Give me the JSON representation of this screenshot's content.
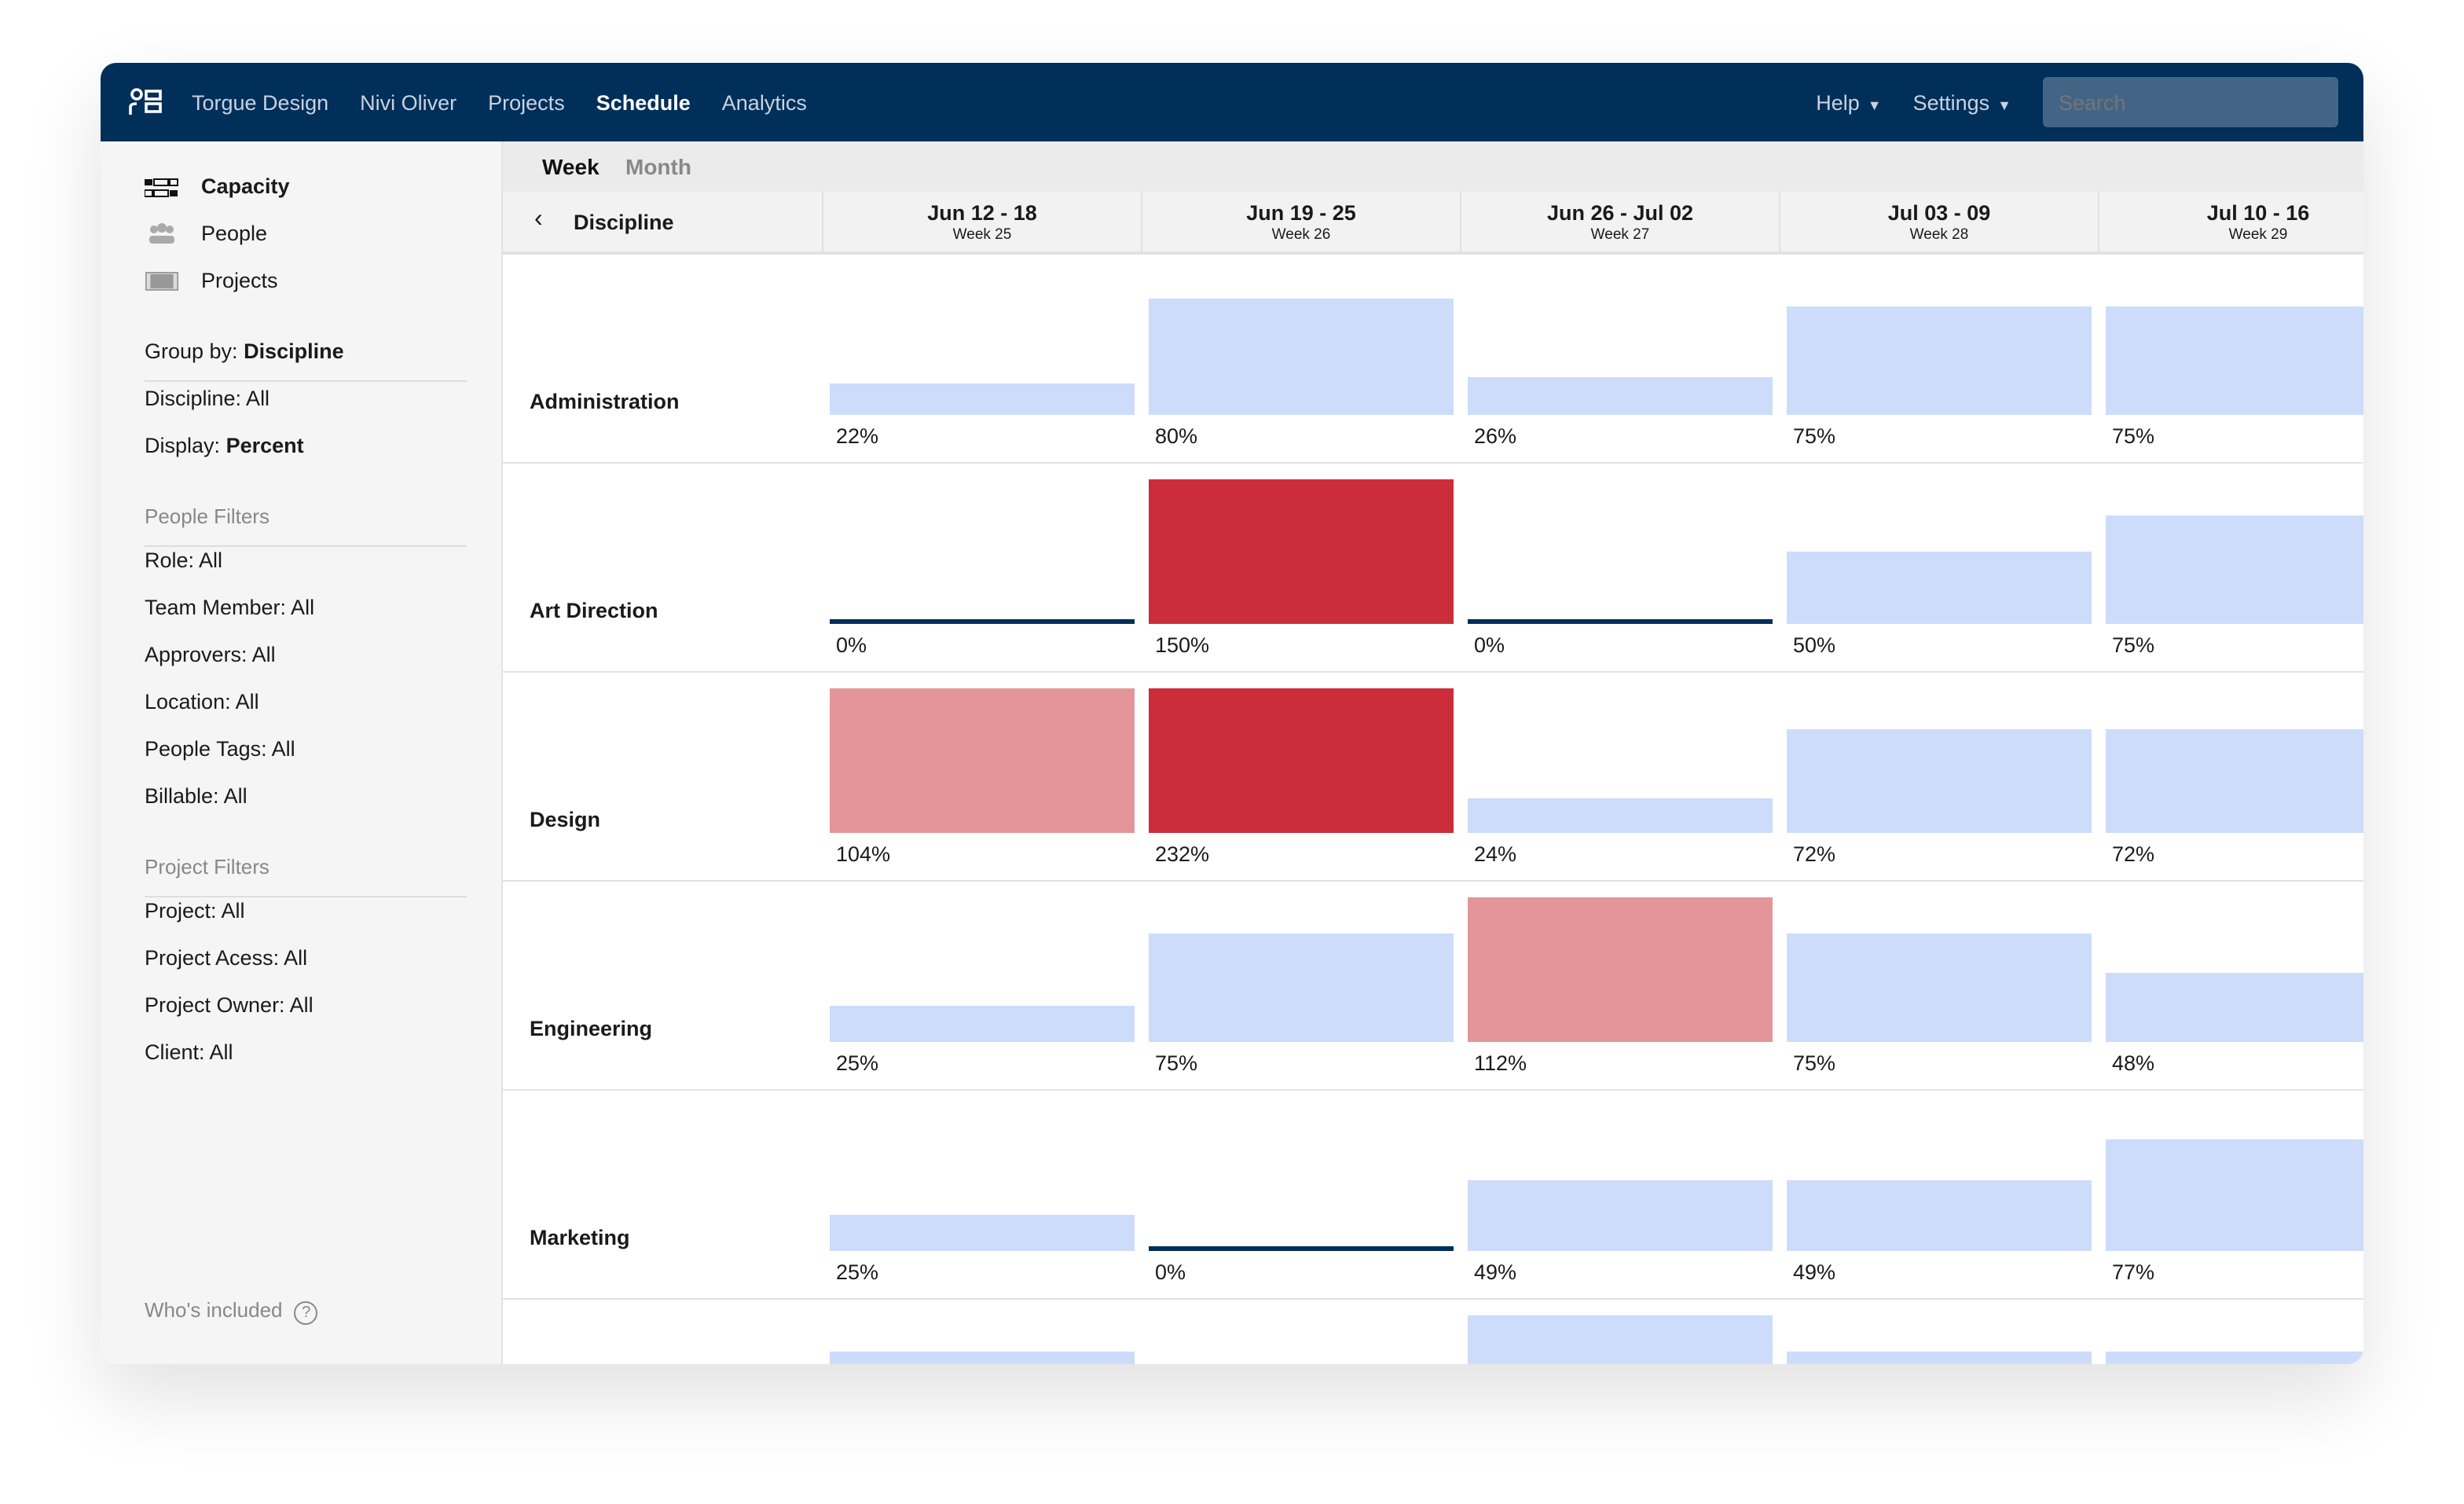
{
  "nav": {
    "items": [
      "Torgue Design",
      "Nivi Oliver",
      "Projects",
      "Schedule",
      "Analytics"
    ],
    "active": "Schedule",
    "help": "Help",
    "settings": "Settings",
    "search_placeholder": "Search"
  },
  "sidebar": {
    "views": [
      {
        "label": "Capacity",
        "icon": "capacity-icon",
        "active": true
      },
      {
        "label": "People",
        "icon": "people-icon"
      },
      {
        "label": "Projects",
        "icon": "projects-icon"
      }
    ],
    "group_by_label": "Group by:",
    "group_by_value": "Discipline",
    "discipline": "Discipline: All",
    "display_label": "Display:",
    "display_value": "Percent",
    "people_filters_title": "People Filters",
    "people_filters": [
      "Role: All",
      "Team Member: All",
      "Approvers: All",
      "Location: All",
      "People Tags: All",
      "Billable: All"
    ],
    "project_filters_title": "Project Filters",
    "project_filters": [
      "Project: All",
      "Project Acess: All",
      "Project Owner: All",
      "Client: All"
    ],
    "whos_included": "Who's included"
  },
  "tabs": {
    "week": "Week",
    "month": "Month",
    "active": "Week"
  },
  "header": {
    "group": "Discipline",
    "weeks": [
      {
        "dates": "Jun 12 - 18",
        "week": "Week 25"
      },
      {
        "dates": "Jun 19 - 25",
        "week": "Week 26"
      },
      {
        "dates": "Jun 26 - Jul 02",
        "week": "Week 27"
      },
      {
        "dates": "Jul 03 - 09",
        "week": "Week 28"
      },
      {
        "dates": "Jul 10 - 16",
        "week": "Week 29"
      }
    ]
  },
  "colors": {
    "under": "#cddcfb",
    "over": "#e3959a",
    "severe": "#cc2d3b",
    "zero": "#002f5a",
    "nav": "#002f5a"
  },
  "rows": [
    {
      "name": "Administration",
      "values": [
        22,
        80,
        26,
        75,
        75
      ],
      "labels": [
        "22%",
        "80%",
        "26%",
        "75%",
        "75%"
      ]
    },
    {
      "name": "Art Direction",
      "values": [
        0,
        150,
        0,
        50,
        75
      ],
      "labels": [
        "0%",
        "150%",
        "0%",
        "50%",
        "75%"
      ]
    },
    {
      "name": "Design",
      "values": [
        104,
        232,
        24,
        72,
        72
      ],
      "labels": [
        "104%",
        "232%",
        "24%",
        "72%",
        "72%"
      ]
    },
    {
      "name": "Engineering",
      "values": [
        25,
        75,
        112,
        75,
        48
      ],
      "labels": [
        "25%",
        "75%",
        "112%",
        "75%",
        "48%"
      ]
    },
    {
      "name": "Marketing",
      "values": [
        25,
        0,
        49,
        49,
        77
      ],
      "labels": [
        "25%",
        "0%",
        "49%",
        "49%",
        "77%"
      ]
    }
  ]
}
